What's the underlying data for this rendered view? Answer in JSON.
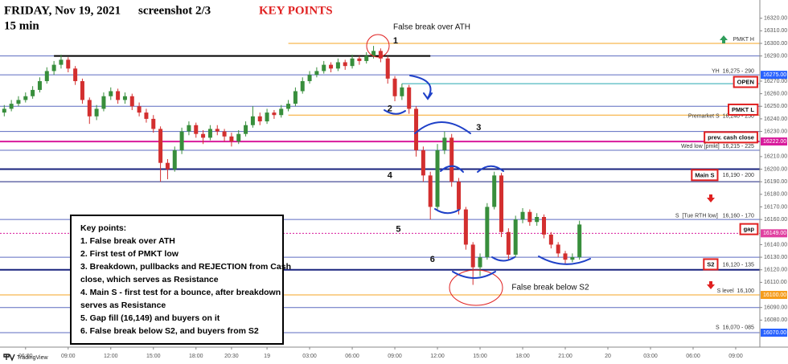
{
  "chart_data": {
    "type": "candlestick",
    "title": "FRIDAY, Nov 19, 2021",
    "subtitle": "screenshot 2/3",
    "heading": "KEY POINTS",
    "timeframe": "15 min",
    "watermark": "TradingView",
    "up_color": "#388e3c",
    "down_color": "#d32f2f",
    "grid": false,
    "xlim": [
      -0.6,
      106.4
    ],
    "ylim": [
      16058.5,
      16334.5
    ],
    "xticks": [
      {
        "value": 3,
        "label": "06:00"
      },
      {
        "value": 9,
        "label": "09:00"
      },
      {
        "value": 15,
        "label": "12:00"
      },
      {
        "value": 21,
        "label": "15:00"
      },
      {
        "value": 27,
        "label": "18:00"
      },
      {
        "value": 32,
        "label": "20:30"
      },
      {
        "value": 37,
        "label": "19"
      },
      {
        "value": 43,
        "label": "03:00"
      },
      {
        "value": 49,
        "label": "06:00"
      },
      {
        "value": 55,
        "label": "09:00"
      },
      {
        "value": 61,
        "label": "12:00"
      },
      {
        "value": 67,
        "label": "15:00"
      },
      {
        "value": 73,
        "label": "18:00"
      },
      {
        "value": 79,
        "label": "21:00"
      },
      {
        "value": 85,
        "label": "20"
      },
      {
        "value": 91,
        "label": "03:00"
      },
      {
        "value": 97,
        "label": "06:00"
      },
      {
        "value": 103,
        "label": "09:00"
      }
    ],
    "yticks": [
      {
        "value": 16320,
        "label": "16320.00"
      },
      {
        "value": 16310,
        "label": "16310.00"
      },
      {
        "value": 16300,
        "label": "16300.00"
      },
      {
        "value": 16290,
        "label": "16290.00"
      },
      {
        "value": 16270,
        "label": "16270.00"
      },
      {
        "value": 16260,
        "label": "16260.00"
      },
      {
        "value": 16250,
        "label": "16250.00"
      },
      {
        "value": 16240,
        "label": "16240.00"
      },
      {
        "value": 16230,
        "label": "16230.00"
      },
      {
        "value": 16210,
        "label": "16210.00"
      },
      {
        "value": 16200,
        "label": "16200.00"
      },
      {
        "value": 16190,
        "label": "16190.00"
      },
      {
        "value": 16180,
        "label": "16180.00"
      },
      {
        "value": 16170,
        "label": "16170.00"
      },
      {
        "value": 16160,
        "label": "16160.00"
      },
      {
        "value": 16140,
        "label": "16140.00"
      },
      {
        "value": 16130,
        "label": "16130.00"
      },
      {
        "value": 16120,
        "label": "16120.00"
      },
      {
        "value": 16110,
        "label": "16110.00"
      },
      {
        "value": 16090,
        "label": "16090.00"
      },
      {
        "value": 16080,
        "label": "16080.00"
      }
    ],
    "price_tags": [
      {
        "value": 16275,
        "label": "16275.00",
        "color": "#2962ff"
      },
      {
        "value": 16222,
        "label": "16222.00",
        "color": "#d81b9c"
      },
      {
        "value": 16149,
        "label": "16149.00",
        "color": "#e040a0"
      },
      {
        "value": 16100,
        "label": "16100.00",
        "color": "#f59c1a"
      },
      {
        "value": 16070,
        "label": "16070.00",
        "color": "#2962ff"
      }
    ],
    "levels": [
      {
        "value": 16300,
        "color": "#f5a623",
        "from": 40
      },
      {
        "value": 16290,
        "color": "#5c6bc0"
      },
      {
        "value": 16290,
        "color": "#000000",
        "from": 7,
        "to": 60,
        "width": 2
      },
      {
        "value": 16275,
        "color": "#5c6bc0"
      },
      {
        "value": 16268,
        "color": "#26a6b0",
        "from": 56
      },
      {
        "value": 16250,
        "color": "#5c6bc0"
      },
      {
        "value": 16243,
        "color": "#f5a623",
        "from": 40
      },
      {
        "value": 16230,
        "color": "#5c6bc0"
      },
      {
        "value": 16222,
        "color": "#d81b9c",
        "width": 2
      },
      {
        "value": 16215,
        "color": "#5c6bc0"
      },
      {
        "value": 16200,
        "color": "#1a237e",
        "width": 2
      },
      {
        "value": 16190,
        "color": "#1a237e"
      },
      {
        "value": 16160,
        "color": "#5c6bc0"
      },
      {
        "value": 16149,
        "color": "#d81b9c",
        "style": "dotted"
      },
      {
        "value": 16130,
        "color": "#5c6bc0"
      },
      {
        "value": 16120,
        "color": "#1a237e",
        "width": 2
      },
      {
        "value": 16100,
        "color": "#f5a623"
      },
      {
        "value": 16090,
        "color": "#5c6bc0"
      },
      {
        "value": 16070,
        "color": "#5c6bc0"
      }
    ],
    "ohlc": [
      [
        16245,
        16251,
        16242,
        16248
      ],
      [
        16248,
        16255,
        16246,
        16252
      ],
      [
        16252,
        16258,
        16250,
        16255
      ],
      [
        16255,
        16261,
        16253,
        16258
      ],
      [
        16258,
        16266,
        16256,
        16263
      ],
      [
        16263,
        16273,
        16261,
        16270
      ],
      [
        16270,
        16281,
        16268,
        16278
      ],
      [
        16278,
        16286,
        16275,
        16283
      ],
      [
        16283,
        16291,
        16280,
        16287
      ],
      [
        16287,
        16289,
        16277,
        16280
      ],
      [
        16280,
        16282,
        16267,
        16270
      ],
      [
        16270,
        16272,
        16252,
        16255
      ],
      [
        16255,
        16257,
        16236,
        16242
      ],
      [
        16242,
        16251,
        16239,
        16248
      ],
      [
        16248,
        16261,
        16246,
        16258
      ],
      [
        16258,
        16265,
        16255,
        16262
      ],
      [
        16262,
        16264,
        16252,
        16255
      ],
      [
        16255,
        16261,
        16252,
        16258
      ],
      [
        16258,
        16260,
        16247,
        16250
      ],
      [
        16250,
        16253,
        16242,
        16245
      ],
      [
        16245,
        16248,
        16237,
        16240
      ],
      [
        16240,
        16243,
        16229,
        16232
      ],
      [
        16232,
        16234,
        16190,
        16205
      ],
      [
        16205,
        16208,
        16192,
        16200
      ],
      [
        16200,
        16218,
        16198,
        16215
      ],
      [
        16215,
        16233,
        16212,
        16230
      ],
      [
        16230,
        16238,
        16227,
        16235
      ],
      [
        16235,
        16237,
        16225,
        16228
      ],
      [
        16228,
        16231,
        16220,
        16225
      ],
      [
        16225,
        16235,
        16223,
        16232
      ],
      [
        16232,
        16235,
        16227,
        16230
      ],
      [
        16230,
        16232,
        16222,
        16226
      ],
      [
        16226,
        16229,
        16218,
        16222
      ],
      [
        16222,
        16231,
        16220,
        16228
      ],
      [
        16228,
        16238,
        16226,
        16235
      ],
      [
        16235,
        16250,
        16233,
        16242
      ],
      [
        16242,
        16245,
        16235,
        16238
      ],
      [
        16238,
        16248,
        16236,
        16245
      ],
      [
        16245,
        16247,
        16240,
        16243
      ],
      [
        16243,
        16251,
        16241,
        16248
      ],
      [
        16248,
        16255,
        16246,
        16252
      ],
      [
        16252,
        16265,
        16250,
        16262
      ],
      [
        16262,
        16273,
        16260,
        16270
      ],
      [
        16270,
        16278,
        16268,
        16275
      ],
      [
        16275,
        16281,
        16273,
        16278
      ],
      [
        16278,
        16286,
        16276,
        16283
      ],
      [
        16283,
        16285,
        16277,
        16280
      ],
      [
        16280,
        16288,
        16278,
        16285
      ],
      [
        16285,
        16287,
        16279,
        16282
      ],
      [
        16282,
        16291,
        16280,
        16288
      ],
      [
        16288,
        16290,
        16283,
        16286
      ],
      [
        16286,
        16293,
        16284,
        16290
      ],
      [
        16290,
        16298,
        16288,
        16294
      ],
      [
        16294,
        16296,
        16285,
        16288
      ],
      [
        16288,
        16290,
        16268,
        16272
      ],
      [
        16272,
        16274,
        16254,
        16258
      ],
      [
        16258,
        16268,
        16255,
        16265
      ],
      [
        16265,
        16267,
        16244,
        16248
      ],
      [
        16248,
        16250,
        16210,
        16215
      ],
      [
        16215,
        16218,
        16190,
        16195
      ],
      [
        16195,
        16198,
        16160,
        16170
      ],
      [
        16170,
        16220,
        16168,
        16215
      ],
      [
        16215,
        16230,
        16212,
        16225
      ],
      [
        16225,
        16228,
        16186,
        16190
      ],
      [
        16190,
        16193,
        16164,
        16168
      ],
      [
        16168,
        16170,
        16136,
        16140
      ],
      [
        16140,
        16142,
        16108,
        16122
      ],
      [
        16122,
        16133,
        16115,
        16130
      ],
      [
        16130,
        16173,
        16128,
        16170
      ],
      [
        16170,
        16198,
        16168,
        16195
      ],
      [
        16195,
        16197,
        16146,
        16150
      ],
      [
        16150,
        16153,
        16128,
        16132
      ],
      [
        16132,
        16163,
        16130,
        16160
      ],
      [
        16160,
        16169,
        16157,
        16166
      ],
      [
        16166,
        16168,
        16155,
        16158
      ],
      [
        16158,
        16165,
        16155,
        16162
      ],
      [
        16162,
        16164,
        16145,
        16148
      ],
      [
        16148,
        16150,
        16137,
        16140
      ],
      [
        16140,
        16142,
        16130,
        16133
      ],
      [
        16133,
        16135,
        16125,
        16128
      ],
      [
        16128,
        16133,
        16126,
        16130
      ],
      [
        16130,
        16159,
        16128,
        16156
      ]
    ],
    "annotations": [
      {
        "text": "PMKT H",
        "x": 105.6,
        "y": 16303,
        "kind": "note"
      },
      {
        "text": "YH  16,275 - 290",
        "x": 105.6,
        "y": 16278,
        "kind": "note"
      },
      {
        "text": "OPEN",
        "x": 105.6,
        "y": 16269,
        "kind": "box"
      },
      {
        "text": "Premarket S  16,240 - 250",
        "x": 105.6,
        "y": 16242,
        "kind": "note"
      },
      {
        "text": "PMKT L",
        "x": 105.6,
        "y": 16247,
        "kind": "box"
      },
      {
        "text": "prev. cash close",
        "x": 105.6,
        "y": 16225,
        "kind": "box"
      },
      {
        "text": "Wed low [pmkt]  16,215 - 225",
        "x": 105.6,
        "y": 16218,
        "kind": "note"
      },
      {
        "text": "Main S",
        "x": 100,
        "y": 16195,
        "kind": "box"
      },
      {
        "text": "16,190 - 200",
        "x": 105.6,
        "y": 16195,
        "kind": "note"
      },
      {
        "text": "S  [Tue RTH low]   16,160 - 170",
        "x": 105.6,
        "y": 16163,
        "kind": "note"
      },
      {
        "text": "gap",
        "x": 105.6,
        "y": 16152,
        "kind": "box"
      },
      {
        "text": "S2",
        "x": 100,
        "y": 16124,
        "kind": "box"
      },
      {
        "text": "16,120 - 135",
        "x": 105.6,
        "y": 16124,
        "kind": "note"
      },
      {
        "text": "S level  16,100",
        "x": 105.6,
        "y": 16103,
        "kind": "note"
      },
      {
        "text": "S  16,070 - 085",
        "x": 105.6,
        "y": 16074,
        "kind": "note"
      },
      {
        "text": "False break over ATH",
        "x": 60.2,
        "y": 16313,
        "kind": "callout"
      },
      {
        "text": "1",
        "x": 55.1,
        "y": 16302,
        "kind": "step"
      },
      {
        "text": "2",
        "x": 54.3,
        "y": 16248,
        "kind": "step"
      },
      {
        "text": "3",
        "x": 66.8,
        "y": 16233,
        "kind": "step"
      },
      {
        "text": "4",
        "x": 54.3,
        "y": 16195,
        "kind": "step"
      },
      {
        "text": "5",
        "x": 55.5,
        "y": 16152,
        "kind": "step"
      },
      {
        "text": "6",
        "x": 60.3,
        "y": 16128,
        "kind": "step"
      },
      {
        "text": "False break below S2",
        "x": 76.9,
        "y": 16106,
        "kind": "callout"
      }
    ],
    "notes": {
      "title": "Key points:",
      "lines": [
        "1. False break over ATH",
        "2. First test of PMKT low",
        "3. Breakdown, pullbacks and REJECTION from Cash",
        "close, which serves as Resistance",
        "4. Main S - first test for a bounce, after breakdown",
        "serves as Resistance",
        "5. Gap fill (16,149) and buyers on it",
        "6. False break below S2, and buyers from S2"
      ]
    }
  }
}
